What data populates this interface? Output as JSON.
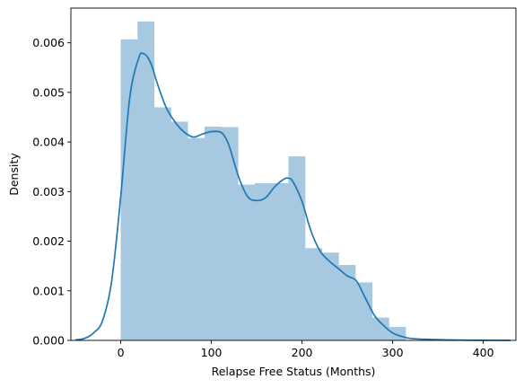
{
  "chart_data": {
    "type": "bar",
    "subtype": "histogram-with-kde",
    "title": "",
    "xlabel": "Relapse Free Status (Months)",
    "ylabel": "Density",
    "xlim": [
      -55,
      436
    ],
    "ylim": [
      0,
      0.0067
    ],
    "xticks": [
      0,
      100,
      200,
      300,
      400
    ],
    "yticks": [
      0.0,
      0.001,
      0.002,
      0.003,
      0.004,
      0.005,
      0.006
    ],
    "ytick_labels": [
      "0.000",
      "0.001",
      "0.002",
      "0.003",
      "0.004",
      "0.005",
      "0.006"
    ],
    "grid": false,
    "legend": "none",
    "bar_color": "#a6c8e1",
    "line_color": "#1f77b4",
    "histogram": {
      "bin_edges": [
        0,
        18.5,
        37,
        55.5,
        74,
        92.5,
        111,
        129.5,
        148,
        166.5,
        185,
        203.5,
        222,
        240.5,
        259,
        277.5,
        296,
        314.5
      ],
      "density": [
        0.00607,
        0.00643,
        0.0047,
        0.00441,
        0.00408,
        0.00431,
        0.0043,
        0.00314,
        0.00317,
        0.00317,
        0.00371,
        0.00186,
        0.00177,
        0.00152,
        0.00117,
        0.00046,
        0.00027
      ]
    },
    "kde": {
      "x": [
        -50,
        -40,
        -30,
        -20,
        -10,
        0,
        10,
        20,
        25,
        30,
        35,
        40,
        50,
        60,
        70,
        80,
        90,
        100,
        110,
        115,
        120,
        130,
        140,
        150,
        160,
        170,
        180,
        185,
        190,
        200,
        210,
        220,
        230,
        240,
        250,
        260,
        270,
        280,
        290,
        300,
        310,
        320,
        340,
        360,
        380,
        400,
        430
      ],
      "y": [
        1e-05,
        4e-05,
        0.00015,
        0.0004,
        0.0012,
        0.0029,
        0.0049,
        0.0057,
        0.00578,
        0.0057,
        0.0055,
        0.0052,
        0.0047,
        0.0044,
        0.0042,
        0.0041,
        0.00416,
        0.00421,
        0.0042,
        0.0041,
        0.0039,
        0.0033,
        0.0029,
        0.00282,
        0.00288,
        0.0031,
        0.00325,
        0.00327,
        0.0032,
        0.0028,
        0.0022,
        0.0018,
        0.0016,
        0.00145,
        0.0013,
        0.0012,
        0.00085,
        0.0005,
        0.0003,
        0.00015,
        8e-05,
        4e-05,
        2e-05,
        1e-05,
        5e-06,
        2e-06,
        0.0
      ]
    }
  }
}
